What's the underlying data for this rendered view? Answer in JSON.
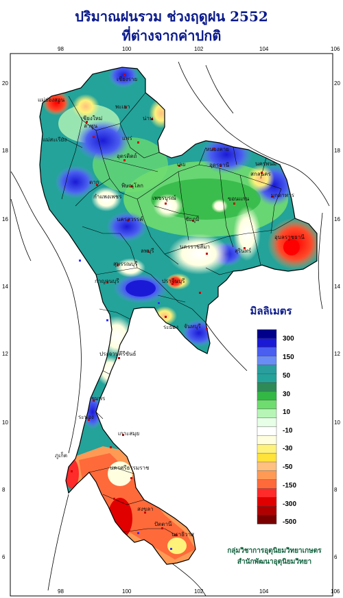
{
  "title_line1": "ปริมาณฝนรวม ช่วงฤดูฝน 2552",
  "title_line2": "ที่ต่างจากค่าปกติ",
  "x_ticks": [
    "98",
    "100",
    "102",
    "104",
    "106"
  ],
  "y_ticks": [
    "20",
    "18",
    "16",
    "14",
    "12",
    "10",
    "8",
    "6"
  ],
  "legend": {
    "unit": "มิลลิเมตร",
    "colors": [
      "#00008b",
      "#1a1ad6",
      "#4a5ef0",
      "#6a8cf5",
      "#2a9d9d",
      "#23a39a",
      "#2e8b57",
      "#33b845",
      "#6fdc6f",
      "#b7f5b7",
      "#e6ffe6",
      "#ffffff",
      "#ffffe0",
      "#fff27a",
      "#ffe23a",
      "#ffc080",
      "#ff9a55",
      "#ff6a3a",
      "#ff2a2a",
      "#e00000",
      "#b00000",
      "#7a0000"
    ],
    "labels": [
      "300",
      "150",
      "50",
      "30",
      "10",
      "-10",
      "-30",
      "-50",
      "-150",
      "-300",
      "-500"
    ]
  },
  "places": [
    {
      "name": "เชียงราย"
    },
    {
      "name": "แม่ฮ่องสอน"
    },
    {
      "name": "พะเยา"
    },
    {
      "name": "เชียงใหม่"
    },
    {
      "name": "ลำพูน"
    },
    {
      "name": "น่าน"
    },
    {
      "name": "แพร่"
    },
    {
      "name": "แม่สะเรียง"
    },
    {
      "name": "อุตรดิตถ์"
    },
    {
      "name": "หนองคาย"
    },
    {
      "name": "อุดรธานี"
    },
    {
      "name": "นครพนม"
    },
    {
      "name": "เลย"
    },
    {
      "name": "สกลนคร"
    },
    {
      "name": "ตาก"
    },
    {
      "name": "พิษณุโลก"
    },
    {
      "name": "มุกดาหาร"
    },
    {
      "name": "กำแพงเพชร"
    },
    {
      "name": "เพชรบูรณ์"
    },
    {
      "name": "ขอนแก่น"
    },
    {
      "name": "นครสวรรค์"
    },
    {
      "name": "ชัยภูมิ"
    },
    {
      "name": "อุบลราชธานี"
    },
    {
      "name": "ลพบุรี"
    },
    {
      "name": "สุรินทร์"
    },
    {
      "name": "สุพรรณบุรี"
    },
    {
      "name": "นครราชสีมา"
    },
    {
      "name": "กาญจนบุรี"
    },
    {
      "name": "ปราจีนบุรี"
    },
    {
      "name": "ระยอง"
    },
    {
      "name": "จันทบุรี"
    },
    {
      "name": "ประจวบคีรีขันธ์"
    },
    {
      "name": "ชุมพร"
    },
    {
      "name": "ระนอง"
    },
    {
      "name": "เกาะสมุย"
    },
    {
      "name": "ภูเก็ต"
    },
    {
      "name": "นครศรีธรรมราช"
    },
    {
      "name": "สงขลา"
    },
    {
      "name": "ปัตตานี"
    },
    {
      "name": "นราธิวาส"
    }
  ],
  "credit_line1": "กลุ่มวิชาการอุตุนิยมวิทยาเกษตร",
  "credit_line2": "สำนักพัฒนาอุตุนิยมวิทยา"
}
